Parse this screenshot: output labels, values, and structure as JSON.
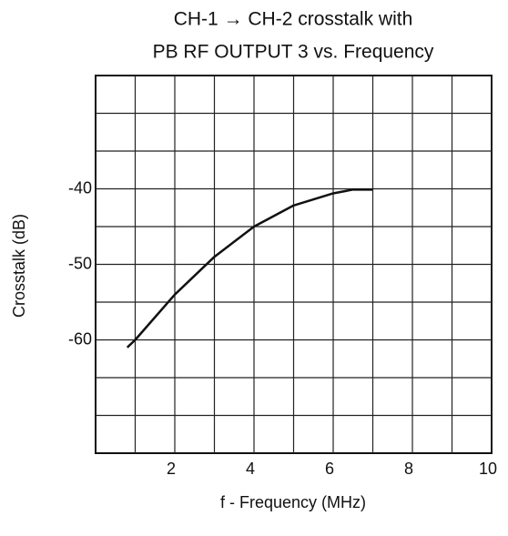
{
  "chart_data": {
    "type": "line",
    "title": [
      "CH-1 → CH-2 crosstalk with",
      "PB RF OUTPUT 3 vs. Frequency"
    ],
    "x_label": "f - Frequency (MHz)",
    "y_label": "Crosstalk (dB)",
    "x": [
      0.8,
      1,
      2,
      3,
      4,
      5,
      6,
      6.5,
      7
    ],
    "series": [
      {
        "color": "#111111",
        "values": [
          -61,
          -60,
          -54,
          -49,
          -45,
          -42.2,
          -40.6,
          -40.1,
          -40.1
        ]
      }
    ],
    "xlim": [
      0,
      10
    ],
    "xticks": [
      2,
      4,
      6,
      8,
      10
    ],
    "x_minor_grid": [
      1,
      3,
      5,
      7,
      9
    ],
    "ylim": [
      -75,
      -25
    ],
    "yticks": [
      -40,
      -50,
      -60
    ],
    "y_minor_grid": [
      -70,
      -65,
      -55,
      -45,
      -35,
      -30
    ],
    "grid": true
  }
}
